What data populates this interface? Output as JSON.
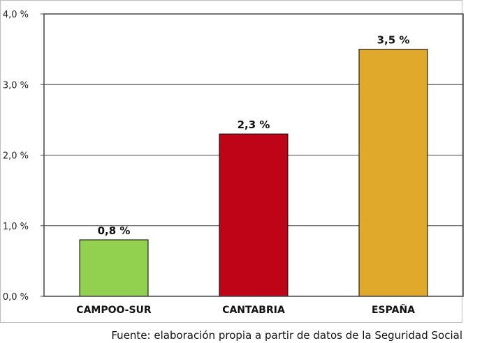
{
  "chart_data": {
    "type": "bar",
    "categories": [
      "CAMPOO-SUR",
      "CANTABRIA",
      "ESPAÑA"
    ],
    "values": [
      0.8,
      2.3,
      3.5
    ],
    "data_labels": [
      "0,8 %",
      "2,3 %",
      "3,5 %"
    ],
    "ylim": [
      0,
      4
    ],
    "yticks": [
      0,
      1,
      2,
      3,
      4
    ],
    "ytick_labels": [
      "0,0 %",
      "1,0 %",
      "2,0 %",
      "3,0 %",
      "4,0 %"
    ],
    "bar_colors": [
      "#92d050",
      "#c00418",
      "#e1a92b"
    ],
    "grid": true,
    "title": "",
    "xlabel": "",
    "ylabel": ""
  },
  "source": "Fuente: elaboración propia a partir de datos de la Seguridad Social"
}
